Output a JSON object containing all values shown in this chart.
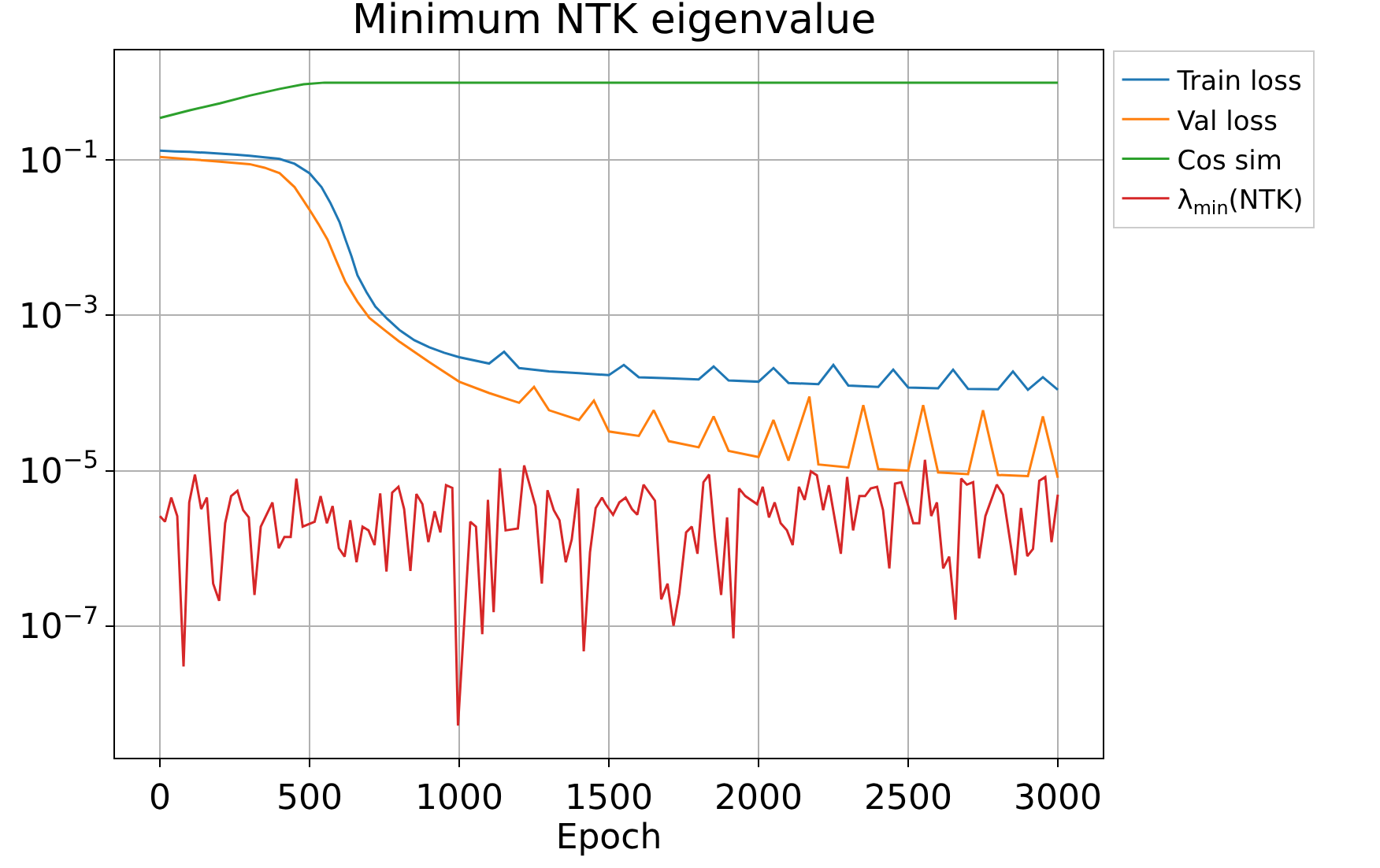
{
  "chart_data": {
    "type": "line",
    "title": "Minimum NTK eigenvalue",
    "xlabel": "Epoch",
    "xlim": [
      -150,
      3150
    ],
    "xticks": [
      0,
      500,
      1000,
      1500,
      2000,
      2500,
      3000
    ],
    "ylim": [
      2e-09,
      2.6
    ],
    "log": "y",
    "yticks": [
      {
        "value": 1e-07,
        "label": "10$^{−7}$"
      },
      {
        "value": 1e-05,
        "label": "10$^{−5}$"
      },
      {
        "value": 0.001,
        "label": "10$^{−3}$"
      },
      {
        "value": 0.1,
        "label": "10$^{−1}$"
      }
    ],
    "grid": true,
    "legend": "top right",
    "line_style": "solid",
    "marker": "none",
    "series": [
      {
        "name": "Train loss",
        "color": "#1f77b4",
        "x": [
          0,
          50,
          100,
          150,
          200,
          250,
          300,
          350,
          390,
          400,
          450,
          500,
          540,
          570,
          600,
          620,
          640,
          660,
          690,
          720,
          760,
          800,
          850,
          900,
          950,
          1000,
          1100,
          1150,
          1200,
          1300,
          1400,
          1500,
          1550,
          1600,
          1700,
          1800,
          1850,
          1900,
          2000,
          2050,
          2100,
          2200,
          2250,
          2300,
          2400,
          2450,
          2500,
          2600,
          2650,
          2700,
          2800,
          2850,
          2900,
          2950,
          3000
        ],
        "values": [
          0.133,
          0.13,
          0.128,
          0.125,
          0.122,
          0.118,
          0.114,
          0.109,
          0.105,
          0.104,
          0.09,
          0.068,
          0.045,
          0.028,
          0.016,
          0.0095,
          0.0058,
          0.0033,
          0.002,
          0.0013,
          0.0009,
          0.00065,
          0.00048,
          0.00039,
          0.00033,
          0.00029,
          0.00024,
          0.00034,
          0.00021,
          0.00019,
          0.00018,
          0.00017,
          0.00023,
          0.00016,
          0.000155,
          0.00015,
          0.00022,
          0.000145,
          0.00014,
          0.00021,
          0.000135,
          0.00013,
          0.00023,
          0.000125,
          0.00012,
          0.0002,
          0.000118,
          0.000115,
          0.0002,
          0.000113,
          0.000112,
          0.00019,
          0.00011,
          0.00016,
          0.00011
        ]
      },
      {
        "name": "Val loss",
        "color": "#ff7f0e",
        "x": [
          0,
          100,
          200,
          300,
          350,
          400,
          450,
          500,
          530,
          560,
          590,
          620,
          660,
          700,
          750,
          800,
          900,
          1000,
          1100,
          1200,
          1250,
          1300,
          1400,
          1450,
          1500,
          1600,
          1650,
          1700,
          1800,
          1850,
          1900,
          2000,
          2050,
          2100,
          2170,
          2200,
          2300,
          2350,
          2400,
          2500,
          2550,
          2600,
          2700,
          2750,
          2800,
          2900,
          2950,
          3000
        ],
        "values": [
          0.11,
          0.103,
          0.096,
          0.089,
          0.08,
          0.068,
          0.045,
          0.023,
          0.015,
          0.0095,
          0.005,
          0.0027,
          0.0015,
          0.00093,
          0.00065,
          0.00046,
          0.00025,
          0.00014,
          0.0001,
          7.5e-05,
          0.00012,
          6e-05,
          4.5e-05,
          8e-05,
          3.2e-05,
          2.8e-05,
          6e-05,
          2.4e-05,
          2e-05,
          5e-05,
          1.8e-05,
          1.5e-05,
          4.5e-05,
          1.35e-05,
          9e-05,
          1.2e-05,
          1.1e-05,
          7e-05,
          1.05e-05,
          1e-05,
          7e-05,
          9.5e-06,
          9e-06,
          6e-05,
          8.8e-06,
          8.5e-06,
          5e-05,
          8.1e-06
        ]
      },
      {
        "name": "Cos sim",
        "color": "#2ca02c",
        "x": [
          0,
          100,
          200,
          300,
          400,
          480,
          550,
          3000
        ],
        "values": [
          0.35,
          0.44,
          0.54,
          0.68,
          0.83,
          0.95,
          1.0,
          1.0
        ]
      },
      {
        "name": "λ$_{min}$(NTK)",
        "color": "#d62728",
        "x": [
          0,
          17,
          38,
          58,
          79,
          98,
          117,
          138,
          157,
          178,
          198,
          218,
          238,
          259,
          278,
          297,
          316,
          337,
          376,
          397,
          416,
          437,
          456,
          477,
          517,
          537,
          558,
          577,
          598,
          617,
          636,
          657,
          677,
          697,
          717,
          736,
          757,
          776,
          797,
          816,
          837,
          857,
          877,
          897,
          918,
          937,
          956,
          977,
          996,
          1037,
          1056,
          1077,
          1096,
          1115,
          1136,
          1155,
          1196,
          1217,
          1255,
          1276,
          1295,
          1316,
          1335,
          1356,
          1376,
          1397,
          1416,
          1437,
          1456,
          1477,
          1489,
          1514,
          1535,
          1556,
          1577,
          1595,
          1616,
          1654,
          1675,
          1696,
          1716,
          1735,
          1758,
          1777,
          1796,
          1816,
          1835,
          1854,
          1875,
          1895,
          1916,
          1935,
          1956,
          1995,
          2014,
          2035,
          2054,
          2074,
          2095,
          2114,
          2135,
          2154,
          2175,
          2195,
          2216,
          2235,
          2275,
          2296,
          2316,
          2337,
          2356,
          2375,
          2396,
          2416,
          2437,
          2456,
          2477,
          2517,
          2537,
          2556,
          2577,
          2596,
          2617,
          2637,
          2658,
          2677,
          2696,
          2717,
          2737,
          2758,
          2796,
          2817,
          2858,
          2877,
          2898,
          2917,
          2938,
          2958,
          2979,
          3000
        ],
        "values": [
          2.6e-06,
          2.2e-06,
          4.5e-06,
          2.6e-06,
          3e-08,
          3.9e-06,
          8.9e-06,
          3.2e-06,
          4.5e-06,
          3.5e-07,
          2.1e-07,
          2.1e-06,
          4.7e-06,
          5.5e-06,
          3.1e-06,
          2.5e-06,
          2.5e-07,
          1.9e-06,
          3.9e-06,
          1e-06,
          1.4e-06,
          1.4e-06,
          7.9e-06,
          1.9e-06,
          2.2e-06,
          4.7e-06,
          2.1e-06,
          3.5e-06,
          1e-06,
          7.8e-07,
          2.3e-06,
          6.6e-07,
          1.9e-06,
          1.7e-06,
          1.1e-06,
          5.1e-06,
          5e-07,
          5.2e-06,
          6.2e-06,
          3.2e-06,
          5.1e-07,
          5e-06,
          3.7e-06,
          1.2e-06,
          3e-06,
          1.6e-06,
          6.5e-06,
          6e-06,
          5.2e-09,
          2.2e-06,
          1.9e-06,
          7.8e-08,
          4.2e-06,
          1.5e-07,
          1.07e-05,
          1.7e-06,
          1.8e-06,
          1.17e-05,
          3.5e-06,
          3.5e-07,
          5.6e-06,
          3.1e-06,
          2.3e-06,
          6.6e-07,
          1.3e-06,
          5.9e-06,
          4.7e-08,
          8.9e-07,
          3.3e-06,
          4.5e-06,
          3.7e-06,
          2.7e-06,
          3.9e-06,
          4.5e-06,
          3.2e-06,
          2.7e-06,
          6.6e-06,
          4.1e-06,
          2.2e-07,
          3.5e-07,
          1e-07,
          2.6e-07,
          1.6e-06,
          1.9e-06,
          8.5e-07,
          7.1e-06,
          8.9e-06,
          1.4e-06,
          2.5e-07,
          2.5e-06,
          6.9e-08,
          5.9e-06,
          4.7e-06,
          3.7e-06,
          6.2e-06,
          2.5e-06,
          3.9e-06,
          2.1e-06,
          1.7e-06,
          1.1e-06,
          6.2e-06,
          4.2e-06,
          9.8e-06,
          8.7e-06,
          3.1e-06,
          6.5e-06,
          8.5e-07,
          8.3e-06,
          1.7e-06,
          4.7e-06,
          4.7e-06,
          5.9e-06,
          6.2e-06,
          3.1e-06,
          5.5e-07,
          6.8e-06,
          7.1e-06,
          2.1e-06,
          2.1e-06,
          1.38e-05,
          2.6e-06,
          3.9e-06,
          5.5e-07,
          7.8e-07,
          1.2e-07,
          7.9e-06,
          6.6e-06,
          7.1e-06,
          7.4e-07,
          2.6e-06,
          6.6e-06,
          4.9e-06,
          4.5e-07,
          3.3e-06,
          7.9e-07,
          9.8e-07,
          7.4e-06,
          8.3e-06,
          1.2e-06,
          4.9e-06
        ]
      }
    ]
  }
}
